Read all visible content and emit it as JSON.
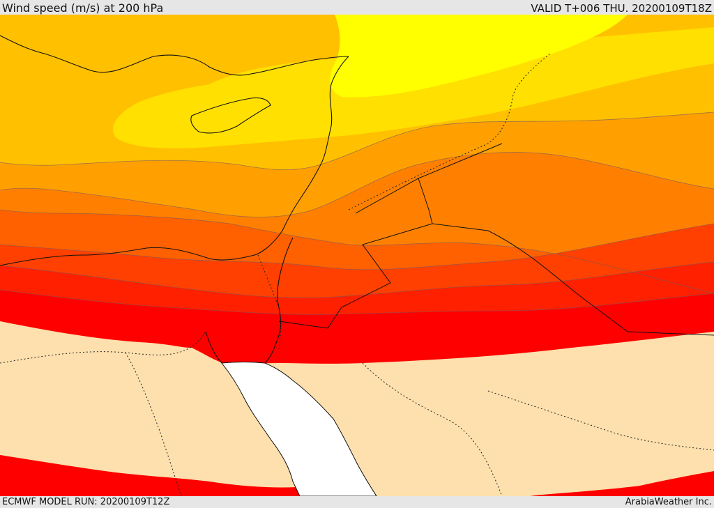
{
  "header": {
    "title": "Wind speed (m/s) at 200 hPa",
    "valid": "VALID T+006 THU. 20200109T18Z"
  },
  "footer": {
    "model_run": "ECMWF MODEL RUN: 20200109T12Z",
    "credit": "ArabiaWeather Inc."
  },
  "map": {
    "field": "wind_speed_200hPa",
    "band_colors": [
      "#ffff00",
      "#ffe000",
      "#ffc000",
      "#ffa000",
      "#ff8000",
      "#ff6000",
      "#ff4000",
      "#ff2000",
      "#ff0000",
      "#fde0ad"
    ],
    "sea_color": "#ffffff",
    "coastline_color": "#111111",
    "border_style": "dotted"
  }
}
